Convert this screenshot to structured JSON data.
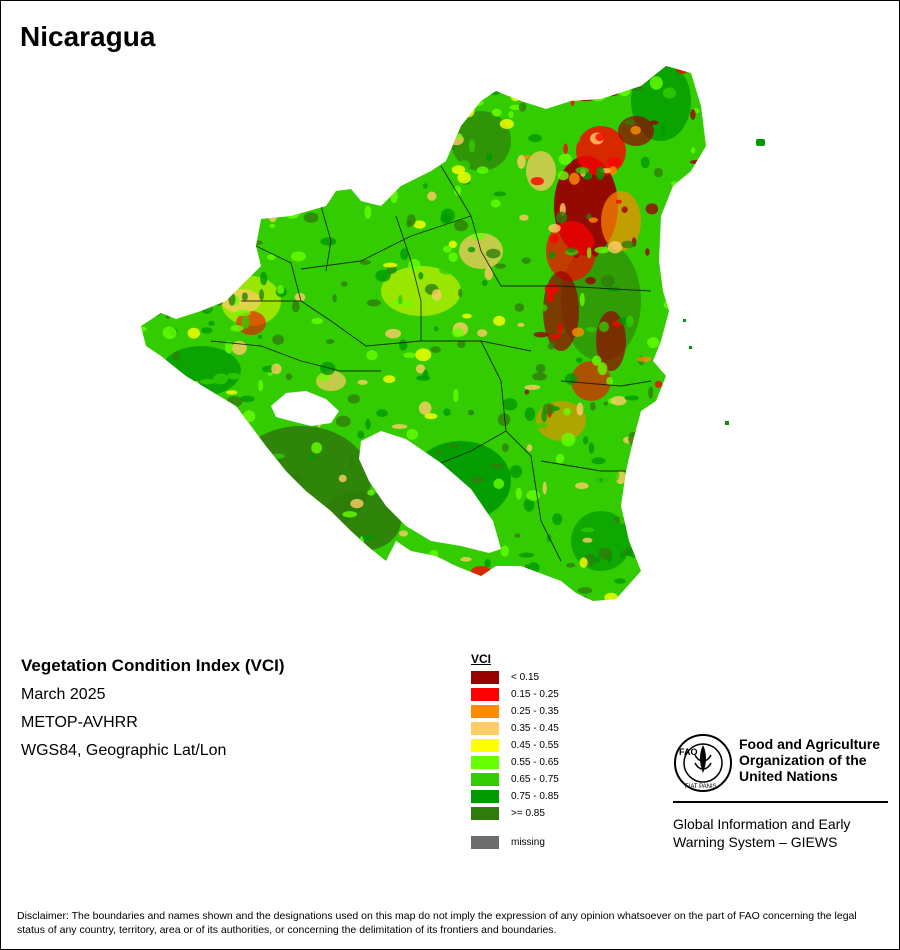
{
  "title": "Nicaragua",
  "info": {
    "index_name": "Vegetation Condition Index (VCI)",
    "period": "March 2025",
    "sensor": "METOP-AVHRR",
    "projection": "WGS84, Geographic Lat/Lon"
  },
  "legend": {
    "title": "VCI",
    "classes": [
      {
        "label": "< 0.15",
        "color": "#990000"
      },
      {
        "label": "0.15 - 0.25",
        "color": "#ff0000"
      },
      {
        "label": "0.25 - 0.35",
        "color": "#ff8c00"
      },
      {
        "label": "0.35 - 0.45",
        "color": "#ffcc66"
      },
      {
        "label": "0.45 - 0.55",
        "color": "#ffff00"
      },
      {
        "label": "0.55 - 0.65",
        "color": "#66ff00"
      },
      {
        "label": "0.65 - 0.75",
        "color": "#33cc00"
      },
      {
        "label": "0.75 - 0.85",
        "color": "#009900"
      },
      {
        "label": ">= 0.85",
        "color": "#2e7d0a"
      }
    ],
    "missing": {
      "label": "missing",
      "color": "#6e6e6e"
    }
  },
  "organization": {
    "logo_icon": "fao-logo-icon",
    "logo_text": [
      "FAO",
      "FIAT PANIS"
    ],
    "name_lines": [
      "Food and Agriculture",
      "Organization of the",
      "United Nations"
    ],
    "program_lines": [
      "Global Information and Early",
      "Warning System – GIEWS"
    ]
  },
  "disclaimer": "Disclaimer: The boundaries and names shown and the designations used on this map do not imply the expression of any opinion whatsoever on the part of FAO concerning the legal status of any country, territory, area or of its authorities, or concerning the delimitation of its frontiers and boundaries."
}
